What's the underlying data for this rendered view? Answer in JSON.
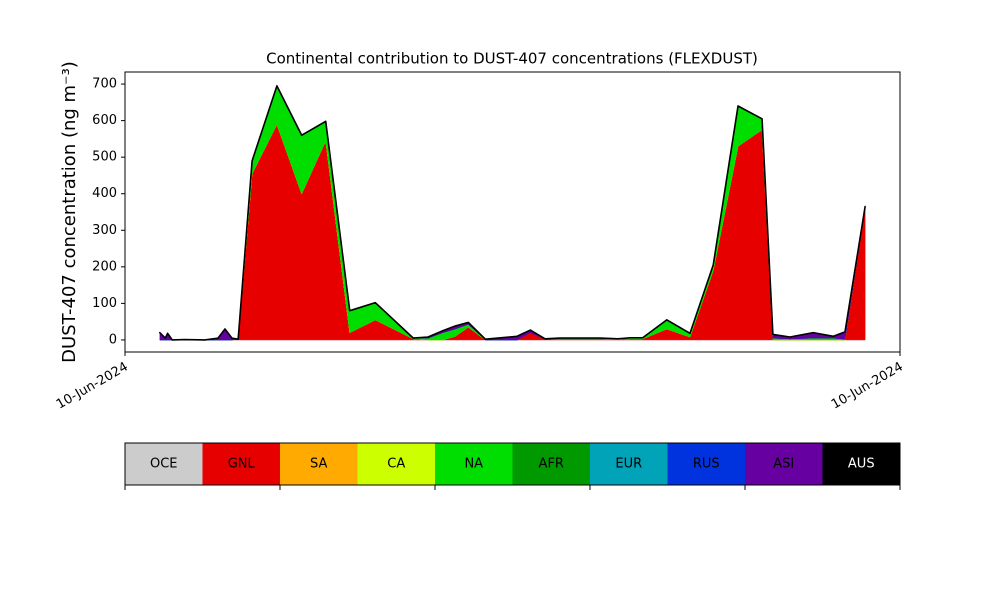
{
  "chart_data": {
    "type": "stacked-area",
    "title": "Continental contribution to DUST-407 concentrations (FLEXDUST)",
    "ylabel": "DUST-407 concentration (ng m⁻³)",
    "x": [
      4.5,
      5.2,
      5.5,
      6.1,
      7.7,
      10.3,
      12.0,
      12.9,
      13.8,
      14.6,
      16.4,
      19.6,
      22.8,
      25.9,
      29.0,
      32.3,
      37.2,
      39.1,
      41.0,
      42.6,
      44.3,
      46.5,
      50.6,
      52.3,
      54.2,
      56.1,
      61.3,
      63.6,
      65.2,
      66.8,
      69.9,
      72.9,
      75.9,
      79.1,
      82.2,
      83.6,
      85.8,
      88.8,
      91.4,
      92.9,
      95.5
    ],
    "xlim": [
      0,
      100
    ],
    "xticks": [
      {
        "value": 0,
        "label": "10-Jun-2024"
      },
      {
        "value": 100,
        "label": "10-Jun-2024"
      }
    ],
    "ylim": [
      -33,
      733
    ],
    "yticks": [
      0,
      100,
      200,
      300,
      400,
      500,
      600,
      700
    ],
    "grid": false,
    "series": [
      {
        "name": "OCE",
        "color": "#cccccc",
        "values": [
          0,
          0,
          0,
          0,
          0,
          0,
          0,
          0,
          0,
          0,
          0,
          0,
          0,
          0,
          0,
          0,
          0,
          0,
          0,
          0,
          0,
          0,
          0,
          0,
          0,
          0,
          0,
          0,
          0,
          0,
          0,
          0,
          0,
          0,
          0,
          0,
          0,
          0,
          0,
          0,
          0
        ]
      },
      {
        "name": "GNL",
        "color": "#e60000",
        "values": [
          0,
          0,
          0,
          0,
          1,
          0,
          0,
          0,
          0,
          2,
          455,
          590,
          400,
          545,
          20,
          55,
          3,
          0,
          0,
          10,
          35,
          0,
          0,
          20,
          2,
          2,
          2,
          1,
          3,
          3,
          30,
          8,
          190,
          530,
          575,
          0,
          0,
          0,
          0,
          0,
          365
        ]
      },
      {
        "name": "SA",
        "color": "#ffaa00",
        "values": [
          0,
          0,
          0,
          0,
          0,
          0,
          0,
          0,
          0,
          0,
          0,
          0,
          0,
          0,
          0,
          0,
          0,
          0,
          0,
          0,
          0,
          0,
          0,
          0,
          0,
          0,
          0,
          0,
          0,
          0,
          0,
          0,
          0,
          0,
          0,
          0,
          0,
          0,
          0,
          0,
          0
        ]
      },
      {
        "name": "CA",
        "color": "#ccff00",
        "values": [
          0,
          0,
          0,
          0,
          0,
          0,
          0,
          0,
          0,
          0,
          0,
          0,
          0,
          0,
          0,
          0,
          0,
          0,
          0,
          0,
          0,
          0,
          0,
          0,
          0,
          0,
          0,
          0,
          0,
          0,
          0,
          0,
          0,
          0,
          0,
          0,
          0,
          0,
          0,
          0,
          0
        ]
      },
      {
        "name": "NA",
        "color": "#00dd00",
        "values": [
          0,
          0,
          0,
          0,
          0,
          0,
          0,
          0,
          0,
          0,
          35,
          105,
          160,
          53,
          60,
          47,
          2,
          5,
          20,
          20,
          8,
          0,
          0,
          0,
          0,
          3,
          3,
          2,
          3,
          3,
          25,
          10,
          15,
          110,
          30,
          5,
          3,
          5,
          5,
          2,
          0
        ]
      },
      {
        "name": "AFR",
        "color": "#009900",
        "values": [
          0,
          0,
          0,
          0,
          0,
          0,
          0,
          0,
          0,
          0,
          0,
          0,
          0,
          0,
          0,
          0,
          0,
          0,
          0,
          0,
          0,
          0,
          0,
          0,
          0,
          0,
          0,
          0,
          0,
          0,
          0,
          0,
          0,
          0,
          0,
          0,
          0,
          0,
          0,
          0,
          0
        ]
      },
      {
        "name": "EUR",
        "color": "#00a3b8",
        "values": [
          0,
          0,
          0,
          0,
          0,
          0,
          0,
          0,
          0,
          0,
          0,
          0,
          0,
          0,
          0,
          0,
          0,
          0,
          0,
          0,
          0,
          0,
          0,
          0,
          0,
          0,
          0,
          0,
          0,
          0,
          0,
          0,
          0,
          0,
          0,
          0,
          0,
          0,
          0,
          0,
          0
        ]
      },
      {
        "name": "RUS",
        "color": "#0033dd",
        "values": [
          0,
          0,
          0,
          0,
          0,
          0,
          0,
          0,
          0,
          0,
          0,
          0,
          0,
          0,
          0,
          0,
          0,
          0,
          0,
          0,
          0,
          0,
          0,
          0,
          0,
          0,
          0,
          0,
          0,
          0,
          0,
          0,
          0,
          0,
          0,
          0,
          0,
          0,
          0,
          0,
          0
        ]
      },
      {
        "name": "ASI",
        "color": "#6600a0",
        "values": [
          20,
          5,
          18,
          0,
          0,
          0,
          5,
          30,
          5,
          0,
          0,
          0,
          0,
          0,
          0,
          0,
          0,
          3,
          5,
          8,
          5,
          2,
          10,
          7,
          1,
          0,
          0,
          0,
          0,
          0,
          0,
          0,
          0,
          0,
          0,
          10,
          5,
          15,
          5,
          20,
          0
        ]
      },
      {
        "name": "AUS",
        "color": "#000000",
        "values": [
          0,
          0,
          0,
          0,
          0,
          0,
          0,
          0,
          0,
          0,
          0,
          0,
          0,
          0,
          0,
          0,
          0,
          0,
          0,
          0,
          0,
          0,
          0,
          0,
          0,
          0,
          0,
          0,
          0,
          0,
          0,
          0,
          0,
          0,
          0,
          0,
          0,
          0,
          0,
          0,
          0
        ]
      }
    ]
  }
}
